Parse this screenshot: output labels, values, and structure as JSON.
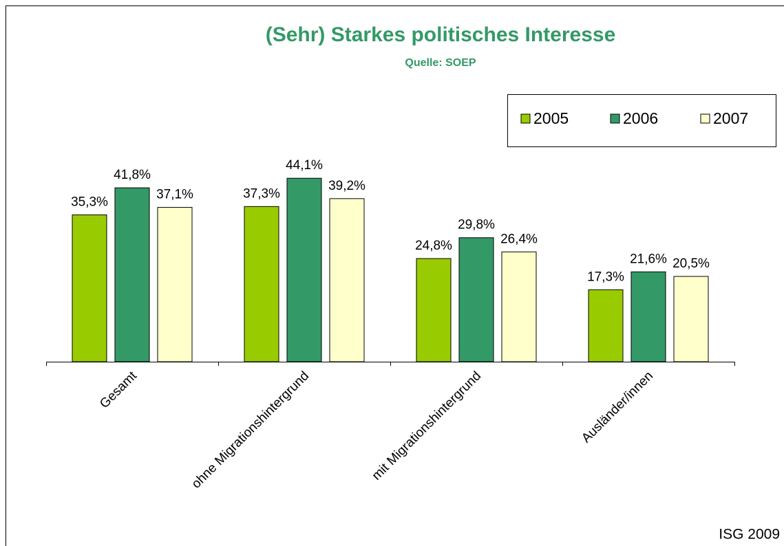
{
  "chart_data": {
    "type": "bar",
    "title": "(Sehr) Starkes politisches Interesse",
    "subtitle": "Quelle: SOEP",
    "source": "ISG 2009",
    "categories": [
      "Gesamt",
      "ohne Migrationshintergrund",
      "mit Migrationshintergrund",
      "Ausländer/innen"
    ],
    "series": [
      {
        "name": "2005",
        "color": "#99cc00",
        "values": [
          35.3,
          37.3,
          24.8,
          17.3
        ],
        "value_labels": [
          "35,3%",
          "37,3%",
          "24,8%",
          "17,3%"
        ]
      },
      {
        "name": "2006",
        "color": "#339966",
        "values": [
          41.8,
          44.1,
          29.8,
          21.6
        ],
        "value_labels": [
          "41,8%",
          "44,1%",
          "29,8%",
          "21,6%"
        ]
      },
      {
        "name": "2007",
        "color": "#ffffcc",
        "values": [
          37.1,
          39.2,
          26.4,
          20.5
        ],
        "value_labels": [
          "37,1%",
          "39,2%",
          "26,4%",
          "20,5%"
        ]
      }
    ],
    "legend": "top-right"
  }
}
